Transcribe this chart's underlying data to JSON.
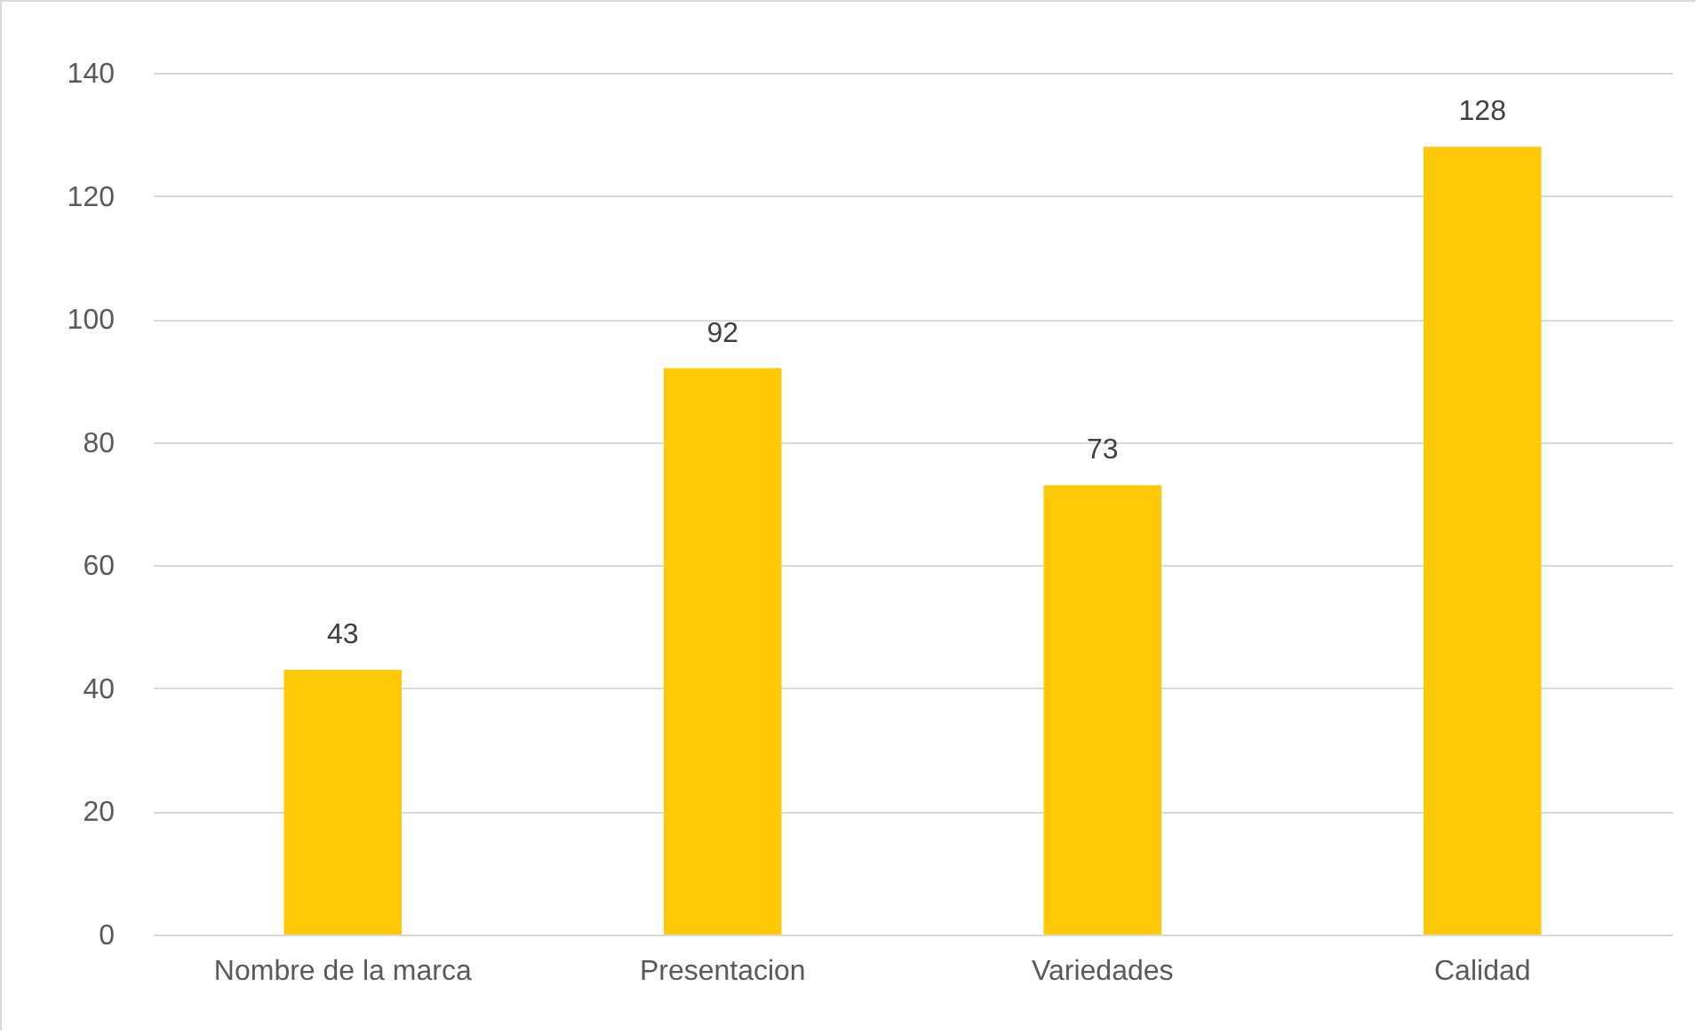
{
  "chart_data": {
    "type": "bar",
    "categories": [
      "Nombre de la marca",
      "Presentacion",
      "Variedades",
      "Calidad"
    ],
    "values": [
      43,
      92,
      73,
      128
    ],
    "color": "#ffc907",
    "ylim": [
      0,
      140
    ],
    "yticks": [
      0,
      20,
      40,
      60,
      80,
      100,
      120,
      140
    ],
    "grid": "y",
    "data_labels": true
  }
}
